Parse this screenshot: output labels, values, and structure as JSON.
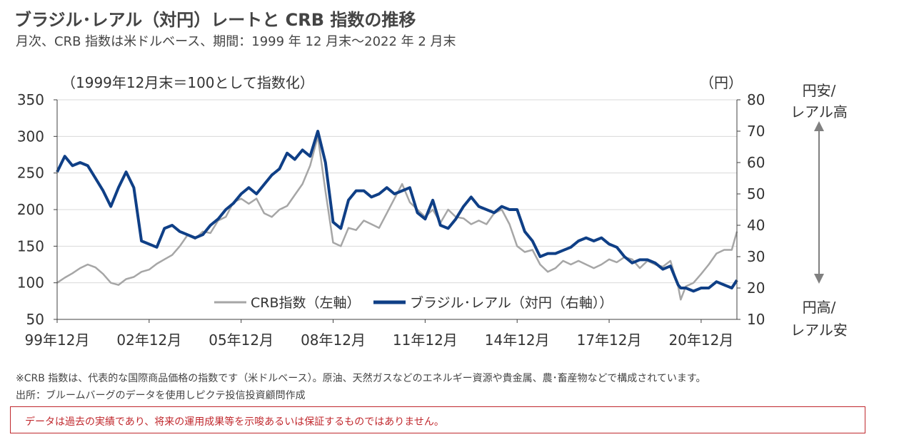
{
  "header": {
    "title": "ブラジル･レアル（対円）レートと CRB 指数の推移",
    "subtitle": "月次、CRB 指数は米ドルベース、期間：1999 年 12 月末～2022 年 2 月末"
  },
  "annotations": {
    "left_unit": "（1999年12月末＝100として指数化）",
    "right_unit": "（円）",
    "top_right_line1": "円安/",
    "top_right_line2": "レアル高",
    "bottom_right_line1": "円高/",
    "bottom_right_line2": "レアル安"
  },
  "notes": {
    "note1": "※CRB 指数は、代表的な国際商品価格の指数です（米ドルベース）。原油、天然ガスなどのエネルギー資源や貴金属、農･畜産物などで構成されています。",
    "note2": "出所：ブルームバーグのデータを使用しピクテ投信投資顧問作成",
    "disclaimer": "データは過去の実績であり、将来の運用成果等を示唆あるいは保証するものではありません。"
  },
  "colors": {
    "crb": "#a6a6a6",
    "brl": "#0f3f86",
    "arrow": "#808080",
    "axis": "#404040",
    "grid": "#d9d9d9"
  },
  "chart_data": {
    "type": "line",
    "title": "ブラジル･レアル（対円）レートと CRB 指数の推移",
    "x_tick_labels": [
      "99年12月",
      "02年12月",
      "05年12月",
      "08年12月",
      "11年12月",
      "14年12月",
      "17年12月",
      "20年12月"
    ],
    "x_range": [
      "1999-12",
      "2022-02"
    ],
    "y_left": {
      "label": "（1999年12月末＝100として指数化）",
      "ticks": [
        "350",
        "300",
        "250",
        "200",
        "150",
        "100",
        "50"
      ],
      "lim": [
        50,
        350
      ]
    },
    "y_right": {
      "label": "（円）",
      "ticks": [
        "80",
        "70",
        "60",
        "50",
        "40",
        "30",
        "20",
        "10"
      ],
      "lim": [
        10,
        80
      ]
    },
    "grid": "horizontal",
    "legend_position": "bottom-center",
    "series": [
      {
        "name": "CRB指数（左軸）",
        "axis": "left",
        "points": [
          [
            "1999-12",
            100
          ],
          [
            "2000-03",
            107
          ],
          [
            "2000-06",
            113
          ],
          [
            "2000-09",
            120
          ],
          [
            "2000-12",
            125
          ],
          [
            "2001-03",
            121
          ],
          [
            "2001-06",
            112
          ],
          [
            "2001-09",
            100
          ],
          [
            "2001-12",
            97
          ],
          [
            "2002-03",
            105
          ],
          [
            "2002-06",
            108
          ],
          [
            "2002-09",
            115
          ],
          [
            "2002-12",
            118
          ],
          [
            "2003-03",
            126
          ],
          [
            "2003-06",
            132
          ],
          [
            "2003-09",
            138
          ],
          [
            "2003-12",
            150
          ],
          [
            "2004-03",
            165
          ],
          [
            "2004-06",
            160
          ],
          [
            "2004-09",
            170
          ],
          [
            "2004-12",
            168
          ],
          [
            "2005-03",
            185
          ],
          [
            "2005-06",
            190
          ],
          [
            "2005-09",
            210
          ],
          [
            "2005-12",
            215
          ],
          [
            "2006-03",
            208
          ],
          [
            "2006-06",
            215
          ],
          [
            "2006-09",
            195
          ],
          [
            "2006-12",
            190
          ],
          [
            "2007-03",
            200
          ],
          [
            "2007-06",
            205
          ],
          [
            "2007-09",
            220
          ],
          [
            "2007-12",
            235
          ],
          [
            "2008-03",
            260
          ],
          [
            "2008-06",
            300
          ],
          [
            "2008-09",
            225
          ],
          [
            "2008-12",
            155
          ],
          [
            "2009-03",
            150
          ],
          [
            "2009-06",
            175
          ],
          [
            "2009-09",
            172
          ],
          [
            "2009-12",
            185
          ],
          [
            "2010-03",
            180
          ],
          [
            "2010-06",
            175
          ],
          [
            "2010-09",
            195
          ],
          [
            "2010-12",
            215
          ],
          [
            "2011-03",
            235
          ],
          [
            "2011-06",
            210
          ],
          [
            "2011-09",
            200
          ],
          [
            "2011-12",
            190
          ],
          [
            "2012-03",
            200
          ],
          [
            "2012-06",
            182
          ],
          [
            "2012-09",
            200
          ],
          [
            "2012-12",
            190
          ],
          [
            "2013-03",
            188
          ],
          [
            "2013-06",
            180
          ],
          [
            "2013-09",
            185
          ],
          [
            "2013-12",
            180
          ],
          [
            "2014-03",
            195
          ],
          [
            "2014-06",
            200
          ],
          [
            "2014-09",
            180
          ],
          [
            "2014-12",
            150
          ],
          [
            "2015-03",
            142
          ],
          [
            "2015-06",
            145
          ],
          [
            "2015-09",
            125
          ],
          [
            "2015-12",
            115
          ],
          [
            "2016-03",
            120
          ],
          [
            "2016-06",
            130
          ],
          [
            "2016-09",
            125
          ],
          [
            "2016-12",
            130
          ],
          [
            "2017-03",
            125
          ],
          [
            "2017-06",
            120
          ],
          [
            "2017-09",
            125
          ],
          [
            "2017-12",
            132
          ],
          [
            "2018-03",
            128
          ],
          [
            "2018-06",
            135
          ],
          [
            "2018-09",
            132
          ],
          [
            "2018-12",
            120
          ],
          [
            "2019-03",
            130
          ],
          [
            "2019-06",
            125
          ],
          [
            "2019-09",
            122
          ],
          [
            "2019-12",
            130
          ],
          [
            "2020-03",
            95
          ],
          [
            "2020-04",
            77
          ],
          [
            "2020-06",
            95
          ],
          [
            "2020-09",
            100
          ],
          [
            "2020-12",
            112
          ],
          [
            "2021-03",
            125
          ],
          [
            "2021-06",
            140
          ],
          [
            "2021-09",
            145
          ],
          [
            "2021-12",
            145
          ],
          [
            "2022-02",
            170
          ]
        ]
      },
      {
        "name": "ブラジル･レアル（対円（右軸））",
        "axis": "right",
        "points": [
          [
            "1999-12",
            57
          ],
          [
            "2000-03",
            62
          ],
          [
            "2000-06",
            59
          ],
          [
            "2000-09",
            60
          ],
          [
            "2000-12",
            59
          ],
          [
            "2001-03",
            55
          ],
          [
            "2001-06",
            51
          ],
          [
            "2001-09",
            46
          ],
          [
            "2001-12",
            52
          ],
          [
            "2002-03",
            57
          ],
          [
            "2002-06",
            52
          ],
          [
            "2002-09",
            35
          ],
          [
            "2002-12",
            34
          ],
          [
            "2003-03",
            33
          ],
          [
            "2003-06",
            39
          ],
          [
            "2003-09",
            40
          ],
          [
            "2003-12",
            38
          ],
          [
            "2004-03",
            37
          ],
          [
            "2004-06",
            36
          ],
          [
            "2004-09",
            37
          ],
          [
            "2004-12",
            40
          ],
          [
            "2005-03",
            42
          ],
          [
            "2005-06",
            45
          ],
          [
            "2005-09",
            47
          ],
          [
            "2005-12",
            50
          ],
          [
            "2006-03",
            52
          ],
          [
            "2006-06",
            50
          ],
          [
            "2006-09",
            53
          ],
          [
            "2006-12",
            56
          ],
          [
            "2007-03",
            58
          ],
          [
            "2007-06",
            63
          ],
          [
            "2007-09",
            61
          ],
          [
            "2007-12",
            64
          ],
          [
            "2008-03",
            62
          ],
          [
            "2008-06",
            70
          ],
          [
            "2008-09",
            60
          ],
          [
            "2008-12",
            41
          ],
          [
            "2009-03",
            39
          ],
          [
            "2009-06",
            48
          ],
          [
            "2009-09",
            51
          ],
          [
            "2009-12",
            51
          ],
          [
            "2010-03",
            49
          ],
          [
            "2010-06",
            50
          ],
          [
            "2010-09",
            52
          ],
          [
            "2010-12",
            50
          ],
          [
            "2011-03",
            51
          ],
          [
            "2011-06",
            52
          ],
          [
            "2011-09",
            44
          ],
          [
            "2011-12",
            42
          ],
          [
            "2012-03",
            48
          ],
          [
            "2012-06",
            40
          ],
          [
            "2012-09",
            39
          ],
          [
            "2012-12",
            42
          ],
          [
            "2013-03",
            46
          ],
          [
            "2013-06",
            49
          ],
          [
            "2013-09",
            46
          ],
          [
            "2013-12",
            45
          ],
          [
            "2014-03",
            44
          ],
          [
            "2014-06",
            46
          ],
          [
            "2014-09",
            45
          ],
          [
            "2014-12",
            45
          ],
          [
            "2015-03",
            38
          ],
          [
            "2015-06",
            35
          ],
          [
            "2015-09",
            30
          ],
          [
            "2015-12",
            31
          ],
          [
            "2016-03",
            31
          ],
          [
            "2016-06",
            32
          ],
          [
            "2016-09",
            33
          ],
          [
            "2016-12",
            35
          ],
          [
            "2017-03",
            36
          ],
          [
            "2017-06",
            35
          ],
          [
            "2017-09",
            36
          ],
          [
            "2017-12",
            34
          ],
          [
            "2018-03",
            33
          ],
          [
            "2018-06",
            30
          ],
          [
            "2018-09",
            28
          ],
          [
            "2018-12",
            29
          ],
          [
            "2019-03",
            29
          ],
          [
            "2019-06",
            28
          ],
          [
            "2019-09",
            26
          ],
          [
            "2019-12",
            27
          ],
          [
            "2020-03",
            21
          ],
          [
            "2020-04",
            20
          ],
          [
            "2020-06",
            20
          ],
          [
            "2020-09",
            19
          ],
          [
            "2020-12",
            20
          ],
          [
            "2021-03",
            20
          ],
          [
            "2021-06",
            22
          ],
          [
            "2021-09",
            21
          ],
          [
            "2021-12",
            20
          ],
          [
            "2022-02",
            22.5
          ]
        ]
      }
    ]
  }
}
